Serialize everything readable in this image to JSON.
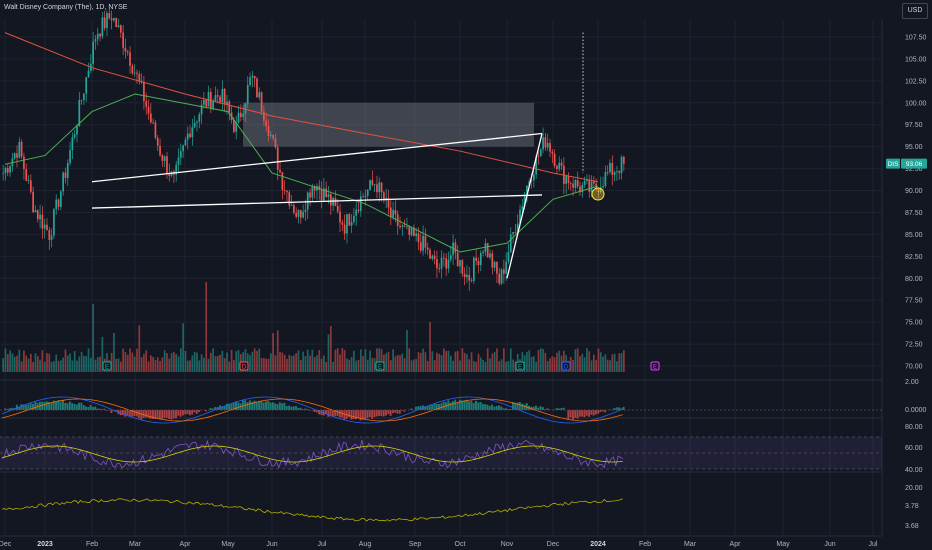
{
  "header": {
    "title": "Walt Disney Company (The), 1D, NYSE",
    "currency_button": "USD"
  },
  "price_tag": {
    "ticker": "DIS",
    "price": "93.06"
  },
  "colors": {
    "up": "#26a69a",
    "down": "#ef5350",
    "ma_long": "#e0533f",
    "ma_short": "#4caf50",
    "pattern_lines": "#ffffff",
    "zone": "#9598a1",
    "rsi": "#7e57c2",
    "rsi_ma": "#d4d400",
    "macd_line": "#2962ff",
    "signal_line": "#ff6d00",
    "lower_line": "#b5b000"
  },
  "x_axis": {
    "ticks": [
      "Dec",
      "2023",
      "Feb",
      "Mar",
      "Apr",
      "May",
      "Jun",
      "Jul",
      "Aug",
      "Sep",
      "Oct",
      "Nov",
      "Dec",
      "2024",
      "Feb",
      "Mar",
      "Apr",
      "May",
      "Jun",
      "Jul"
    ]
  },
  "price_axis": {
    "ticks": [
      "107.50",
      "105.00",
      "102.50",
      "100.00",
      "97.50",
      "95.00",
      "92.50",
      "90.00",
      "87.50",
      "85.00",
      "82.50",
      "80.00",
      "77.50",
      "75.00",
      "72.50",
      "70.00"
    ]
  },
  "macd_axis": {
    "ticks": [
      "2.00",
      "0.0000"
    ]
  },
  "rsi_axis": {
    "ticks": [
      "80.00",
      "60.00",
      "40.00",
      "20.00"
    ]
  },
  "lower_axis": {
    "ticks": [
      "3.78",
      "3.68"
    ]
  },
  "event_markers": [
    {
      "label": "E",
      "month": "Feb"
    },
    {
      "label": "D",
      "month": "May"
    },
    {
      "label": "E",
      "month": "Aug"
    },
    {
      "label": "E",
      "month": "Nov"
    },
    {
      "label": "D",
      "month": "Dec"
    },
    {
      "label": "E",
      "month": "Feb 2024"
    }
  ],
  "chart_data": {
    "type": "candlestick",
    "ticker": "DIS",
    "exchange": "NYSE",
    "interval": "1D",
    "y_range": [
      69,
      110
    ],
    "month_axis": [
      "Dec 2022",
      "Jan 2023",
      "Feb",
      "Mar",
      "Apr",
      "May",
      "Jun",
      "Jul",
      "Aug",
      "Sep",
      "Oct",
      "Nov",
      "Dec",
      "Jan 2024",
      "Feb",
      "Mar",
      "Apr",
      "May",
      "Jun",
      "Jul"
    ],
    "price_path": [
      [
        "Dec 2022",
        92
      ],
      [
        "Dec 2022",
        95
      ],
      [
        "Dec 2022",
        88
      ],
      [
        "Dec 2022",
        85
      ],
      [
        "Jan 2023",
        92
      ],
      [
        "Jan 2023",
        100
      ],
      [
        "Jan 2023",
        108
      ],
      [
        "Feb",
        110
      ],
      [
        "Feb",
        106
      ],
      [
        "Feb",
        101
      ],
      [
        "Mar",
        95
      ],
      [
        "Mar",
        91
      ],
      [
        "Mar",
        97
      ],
      [
        "Apr",
        100
      ],
      [
        "Apr",
        101
      ],
      [
        "Apr",
        97
      ],
      [
        "May",
        103
      ],
      [
        "May",
        98
      ],
      [
        "May",
        91
      ],
      [
        "Jun",
        87
      ],
      [
        "Jun",
        91
      ],
      [
        "Jun",
        89
      ],
      [
        "Jul",
        86
      ],
      [
        "Jul",
        89
      ],
      [
        "Aug",
        91
      ],
      [
        "Aug",
        87
      ],
      [
        "Aug",
        85
      ],
      [
        "Sep",
        84
      ],
      [
        "Sep",
        81
      ],
      [
        "Oct",
        83
      ],
      [
        "Oct",
        80
      ],
      [
        "Oct",
        84
      ],
      [
        "Nov",
        79.5
      ],
      [
        "Nov",
        86
      ],
      [
        "Nov",
        92
      ],
      [
        "Dec",
        96
      ],
      [
        "Dec",
        92
      ],
      [
        "Dec",
        90.5
      ],
      [
        "Jan 2024",
        90
      ],
      [
        "Jan 2024",
        92
      ],
      [
        "Jan 2024",
        93.06
      ]
    ],
    "moving_averages": [
      {
        "name": "long MA",
        "points": [
          [
            "Dec 2022",
            108
          ],
          [
            "Feb",
            104
          ],
          [
            "Apr",
            101
          ],
          [
            "Jun",
            98.5
          ],
          [
            "Aug",
            96.5
          ],
          [
            "Oct",
            94.5
          ],
          [
            "Dec",
            92
          ],
          [
            "Jan 2024",
            91
          ]
        ]
      },
      {
        "name": "short MA",
        "points": [
          [
            "Dec 2022",
            93
          ],
          [
            "Jan 2023",
            94
          ],
          [
            "Feb",
            99
          ],
          [
            "Mar",
            101
          ],
          [
            "May",
            99
          ],
          [
            "Jun",
            92
          ],
          [
            "Aug",
            88.5
          ],
          [
            "Oct",
            83
          ],
          [
            "Nov",
            84
          ],
          [
            "Dec",
            89
          ],
          [
            "Jan 2024",
            90.5
          ]
        ]
      }
    ],
    "annotations": [
      {
        "type": "supply zone",
        "price_from": 95,
        "price_to": 100,
        "time_from": "May",
        "time_to": "Nov"
      },
      {
        "type": "pennant upper",
        "from": [
          "Nov",
          96.5
        ],
        "to": [
          "Feb",
          91
        ]
      },
      {
        "type": "pennant lower",
        "from": [
          "Nov",
          89.5
        ],
        "to": [
          "Feb",
          88
        ]
      },
      {
        "type": "flagpole",
        "from": [
          "Nov",
          80
        ],
        "to": [
          "Nov",
          96.5
        ]
      },
      {
        "type": "projection dotted",
        "time": "Dec",
        "from": 108,
        "to": 92
      }
    ],
    "last_price": 93.06
  }
}
